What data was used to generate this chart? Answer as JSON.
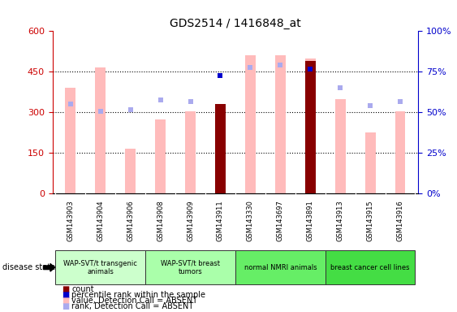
{
  "title": "GDS2514 / 1416848_at",
  "samples": [
    "GSM143903",
    "GSM143904",
    "GSM143906",
    "GSM143908",
    "GSM143909",
    "GSM143911",
    "GSM143330",
    "GSM143697",
    "GSM143891",
    "GSM143913",
    "GSM143915",
    "GSM143916"
  ],
  "count_values": [
    0,
    0,
    0,
    0,
    0,
    330,
    0,
    0,
    490,
    0,
    0,
    0
  ],
  "value_absent": [
    390,
    465,
    165,
    275,
    305,
    305,
    510,
    510,
    500,
    350,
    225,
    305
  ],
  "rank_absent": [
    330,
    305,
    310,
    345,
    340,
    0,
    465,
    475,
    0,
    390,
    325,
    340
  ],
  "percentile_present": [
    null,
    null,
    null,
    null,
    null,
    435,
    null,
    null,
    460,
    null,
    null,
    null
  ],
  "ylim_left": [
    0,
    600
  ],
  "ylim_right": [
    0,
    100
  ],
  "yticks_left": [
    0,
    150,
    300,
    450,
    600
  ],
  "yticks_right": [
    0,
    25,
    50,
    75,
    100
  ],
  "groups": [
    {
      "label": "WAP-SVT/t transgenic\nanimals",
      "start": 0,
      "end": 3,
      "color": "#ccffcc"
    },
    {
      "label": "WAP-SVT/t breast\ntumors",
      "start": 3,
      "end": 6,
      "color": "#aaffaa"
    },
    {
      "label": "normal NMRI animals",
      "start": 6,
      "end": 9,
      "color": "#66ee66"
    },
    {
      "label": "breast cancer cell lines",
      "start": 9,
      "end": 12,
      "color": "#44dd44"
    }
  ],
  "bar_color_dark": "#880000",
  "bar_color_light": "#ffbbbb",
  "rank_color": "#aaaaee",
  "percentile_color": "#0000cc",
  "bg_color": "#ffffff",
  "plot_bg": "#ffffff",
  "tick_color_left": "#cc0000",
  "tick_color_right": "#0000cc",
  "label_bg": "#cccccc",
  "legend_items": [
    {
      "color": "#880000",
      "label": "count"
    },
    {
      "color": "#0000cc",
      "label": "percentile rank within the sample"
    },
    {
      "color": "#ffbbbb",
      "label": "value, Detection Call = ABSENT"
    },
    {
      "color": "#aaaaee",
      "label": "rank, Detection Call = ABSENT"
    }
  ],
  "bar_width": 0.35
}
